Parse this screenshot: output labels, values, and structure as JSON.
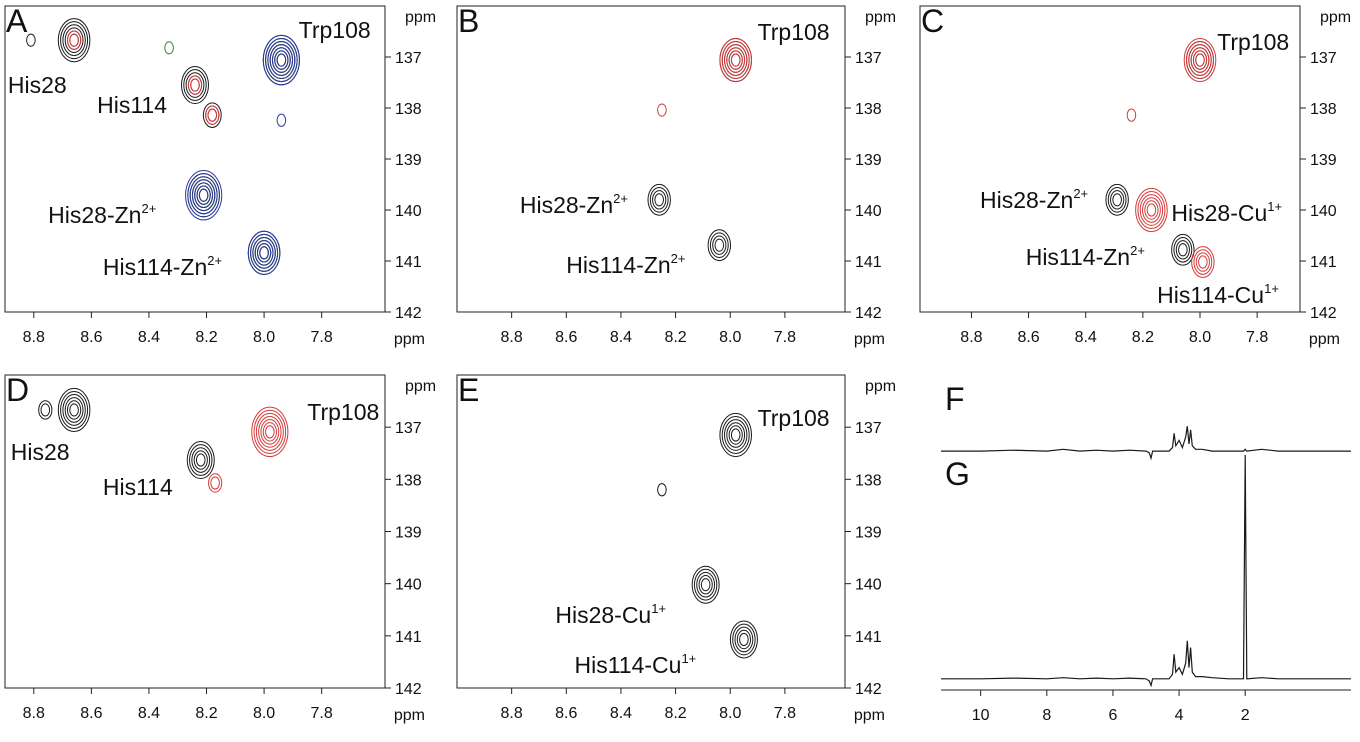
{
  "chart_data": [
    {
      "type": "contour",
      "label": "A",
      "xlabel": "ppm",
      "ylabel": "ppm",
      "xlim": [
        8.9,
        7.58
      ],
      "ylim": [
        136,
        142
      ],
      "xticks": [
        8.8,
        8.6,
        8.4,
        8.2,
        {
          "value": 8,
          "label": "8.0"
        },
        7.8
      ],
      "yticks": [
        137,
        138,
        139,
        140,
        141,
        142
      ],
      "spectra": [
        {
          "color": "#1a1a1a",
          "peaks": [
            {
              "x": 8.66,
              "y": 136.67,
              "levels": 6
            },
            {
              "x": 8.81,
              "y": 136.67,
              "levels": 1
            },
            {
              "x": 8.24,
              "y": 137.55,
              "levels": 5
            },
            {
              "x": 8.18,
              "y": 138.14,
              "levels": 3
            },
            {
              "x": 7.94,
              "y": 137.06,
              "levels": 7
            },
            {
              "x": 8.21,
              "y": 139.71,
              "levels": 6
            },
            {
              "x": 8.0,
              "y": 140.84,
              "levels": 6
            }
          ]
        },
        {
          "color": "#d43a3a",
          "peaks": [
            {
              "x": 8.66,
              "y": 136.67,
              "levels": 2
            },
            {
              "x": 8.24,
              "y": 137.55,
              "levels": 2
            },
            {
              "x": 8.18,
              "y": 138.14,
              "levels": 2
            },
            {
              "x": 7.94,
              "y": 137.06,
              "levels": 5
            },
            {
              "x": 8.21,
              "y": 139.71,
              "levels": 4
            },
            {
              "x": 8.0,
              "y": 140.84,
              "levels": 4
            }
          ]
        },
        {
          "color": "#2a8a3a",
          "peaks": [
            {
              "x": 8.33,
              "y": 136.82,
              "levels": 1
            },
            {
              "x": 7.94,
              "y": 137.06,
              "levels": 6
            },
            {
              "x": 8.21,
              "y": 139.71,
              "levels": 5
            },
            {
              "x": 8.0,
              "y": 140.84,
              "levels": 5
            }
          ]
        },
        {
          "color": "#2b3a9c",
          "peaks": [
            {
              "x": 7.94,
              "y": 138.24,
              "levels": 1
            },
            {
              "x": 7.94,
              "y": 137.06,
              "levels": 7
            },
            {
              "x": 8.21,
              "y": 139.71,
              "levels": 7
            },
            {
              "x": 8.0,
              "y": 140.84,
              "levels": 6
            }
          ]
        }
      ],
      "annotations": [
        {
          "text": "Trp108",
          "x": 7.88,
          "y": 136.47
        },
        {
          "text": "His28",
          "x": 8.89,
          "y": 137.55
        },
        {
          "text": "His114",
          "x": 8.58,
          "y": 137.94
        },
        {
          "text": "His28-Zn",
          "sup": "2+",
          "x": 8.75,
          "y": 140.1
        },
        {
          "text": "His114-Zn",
          "sup": "2+",
          "x": 8.56,
          "y": 141.12
        }
      ]
    },
    {
      "type": "contour",
      "label": "B",
      "xlabel": "ppm",
      "ylabel": "ppm",
      "xlim": [
        9.0,
        7.58
      ],
      "ylim": [
        136,
        142
      ],
      "xticks": [
        8.8,
        8.6,
        8.4,
        8.2,
        {
          "value": 8,
          "label": "8.0"
        },
        7.8
      ],
      "yticks": [
        137,
        138,
        139,
        140,
        141,
        142
      ],
      "spectra": [
        {
          "color": "#1a1a1a",
          "peaks": [
            {
              "x": 7.98,
              "y": 137.06,
              "levels": 6
            },
            {
              "x": 8.26,
              "y": 139.8,
              "levels": 4
            },
            {
              "x": 8.04,
              "y": 140.69,
              "levels": 4
            }
          ]
        },
        {
          "color": "#d43a3a",
          "peaks": [
            {
              "x": 7.98,
              "y": 137.06,
              "levels": 6
            },
            {
              "x": 8.25,
              "y": 138.04,
              "levels": 1
            }
          ]
        }
      ],
      "annotations": [
        {
          "text": "Trp108",
          "x": 7.9,
          "y": 136.51
        },
        {
          "text": "His28-Zn",
          "sup": "2+",
          "x": 8.77,
          "y": 139.9
        },
        {
          "text": "His114-Zn",
          "sup": "2+",
          "x": 8.6,
          "y": 141.08
        }
      ]
    },
    {
      "type": "contour",
      "label": "C",
      "xlabel": "ppm",
      "ylabel": "ppm",
      "xlim": [
        8.98,
        7.65
      ],
      "ylim": [
        136,
        142
      ],
      "xticks": [
        8.8,
        8.6,
        8.4,
        8.2,
        {
          "value": 8,
          "label": "8.0"
        },
        7.8
      ],
      "yticks": [
        137,
        138,
        139,
        140,
        141,
        142
      ],
      "spectra": [
        {
          "color": "#1a1a1a",
          "peaks": [
            {
              "x": 8.0,
              "y": 137.06,
              "levels": 5
            },
            {
              "x": 8.29,
              "y": 139.8,
              "levels": 4
            },
            {
              "x": 8.06,
              "y": 140.78,
              "levels": 4
            }
          ]
        },
        {
          "color": "#d43a3a",
          "peaks": [
            {
              "x": 8.0,
              "y": 137.06,
              "levels": 6
            },
            {
              "x": 8.24,
              "y": 138.14,
              "levels": 1
            },
            {
              "x": 8.17,
              "y": 140.0,
              "levels": 6
            },
            {
              "x": 7.99,
              "y": 141.02,
              "levels": 4
            }
          ]
        }
      ],
      "annotations": [
        {
          "text": "Trp108",
          "x": 7.94,
          "y": 136.71
        },
        {
          "text": "His28-Zn",
          "sup": "2+",
          "x": 8.77,
          "y": 139.8
        },
        {
          "text": "His28-Cu",
          "sup": "1+",
          "x": 8.1,
          "y": 140.06
        },
        {
          "text": "His114-Zn",
          "sup": "2+",
          "x": 8.61,
          "y": 140.92
        },
        {
          "text": "His114-Cu",
          "sup": "1+",
          "x": 8.15,
          "y": 141.67
        }
      ]
    },
    {
      "type": "contour",
      "label": "D",
      "xlabel": "ppm",
      "ylabel": "ppm",
      "xlim": [
        8.9,
        7.58
      ],
      "ylim": [
        136,
        142
      ],
      "xticks": [
        8.8,
        8.6,
        8.4,
        8.2,
        {
          "value": 8,
          "label": "8.0"
        },
        7.8
      ],
      "yticks": [
        137,
        138,
        139,
        140,
        141,
        142
      ],
      "spectra": [
        {
          "color": "#1a1a1a",
          "peaks": [
            {
              "x": 8.66,
              "y": 136.67,
              "levels": 6
            },
            {
              "x": 8.76,
              "y": 136.67,
              "levels": 2
            },
            {
              "x": 8.22,
              "y": 137.63,
              "levels": 5
            }
          ]
        },
        {
          "color": "#d43a3a",
          "peaks": [
            {
              "x": 7.98,
              "y": 137.09,
              "levels": 7
            },
            {
              "x": 8.17,
              "y": 138.07,
              "levels": 2
            }
          ]
        }
      ],
      "annotations": [
        {
          "text": "Trp108",
          "x": 7.85,
          "y": 136.71
        },
        {
          "text": "His28",
          "x": 8.88,
          "y": 137.48
        },
        {
          "text": "His114",
          "x": 8.56,
          "y": 138.15
        }
      ]
    },
    {
      "type": "contour",
      "label": "E",
      "xlabel": "ppm",
      "ylabel": "ppm",
      "xlim": [
        9.0,
        7.58
      ],
      "ylim": [
        136,
        142
      ],
      "xticks": [
        8.8,
        8.6,
        8.4,
        8.2,
        {
          "value": 8,
          "label": "8.0"
        },
        7.8
      ],
      "yticks": [
        137,
        138,
        139,
        140,
        141,
        142
      ],
      "spectra": [
        {
          "color": "#1a1a1a",
          "peaks": [
            {
              "x": 7.98,
              "y": 137.15,
              "levels": 6
            },
            {
              "x": 8.25,
              "y": 138.2,
              "levels": 1
            },
            {
              "x": 8.09,
              "y": 140.02,
              "levels": 5
            },
            {
              "x": 7.95,
              "y": 141.07,
              "levels": 5
            }
          ]
        }
      ],
      "annotations": [
        {
          "text": "Trp108",
          "x": 7.9,
          "y": 136.82
        },
        {
          "text": "His28-Cu",
          "sup": "1+",
          "x": 8.64,
          "y": 140.6
        },
        {
          "text": "His114-Cu",
          "sup": "1+",
          "x": 8.57,
          "y": 141.56
        }
      ]
    },
    {
      "type": "line",
      "label": "F",
      "xlim": [
        11.2,
        -1.2
      ],
      "ylim": [
        -5,
        40
      ],
      "color": "#1a1a1a",
      "x": [
        11.2,
        10,
        9,
        8,
        7.5,
        7,
        6.5,
        6,
        5.5,
        5,
        4.9,
        4.85,
        4.8,
        4.3,
        4.2,
        4.15,
        4.1,
        4.0,
        3.9,
        3.8,
        3.75,
        3.7,
        3.65,
        3.6,
        3.5,
        3.3,
        3.0,
        2.5,
        2.05,
        2.0,
        1.95,
        1.5,
        1.0,
        0,
        -1.2
      ],
      "values": [
        0,
        0,
        0.5,
        0,
        1,
        0,
        0.5,
        0,
        0.5,
        0,
        -1,
        -4,
        0,
        0,
        2,
        10,
        3,
        6,
        2,
        8,
        14,
        4,
        12,
        3,
        1,
        1,
        0,
        0,
        0,
        1,
        0,
        1,
        0,
        0,
        0
      ]
    },
    {
      "type": "line",
      "label": "G",
      "xlabel": "ppm",
      "xlim": [
        11.2,
        -1.2
      ],
      "ylim": [
        -5,
        100
      ],
      "xticks": [
        10,
        8,
        6,
        4,
        2
      ],
      "color": "#1a1a1a",
      "x": [
        11.2,
        10,
        9,
        8,
        7.5,
        7,
        6.5,
        6,
        5.5,
        5,
        4.9,
        4.85,
        4.8,
        4.3,
        4.2,
        4.15,
        4.1,
        4.0,
        3.9,
        3.8,
        3.75,
        3.7,
        3.65,
        3.6,
        3.5,
        3.3,
        3.0,
        2.5,
        2.05,
        2.0,
        1.95,
        1.5,
        1.0,
        0,
        -1.2
      ],
      "values": [
        0,
        0,
        0.3,
        0,
        0.5,
        0,
        0.3,
        0,
        0.3,
        0,
        -1,
        -3,
        0,
        0,
        2,
        11,
        3,
        5,
        2,
        7,
        17,
        5,
        14,
        3,
        1,
        1,
        0.5,
        0,
        0,
        100,
        0,
        0.5,
        0,
        0,
        0
      ]
    }
  ]
}
